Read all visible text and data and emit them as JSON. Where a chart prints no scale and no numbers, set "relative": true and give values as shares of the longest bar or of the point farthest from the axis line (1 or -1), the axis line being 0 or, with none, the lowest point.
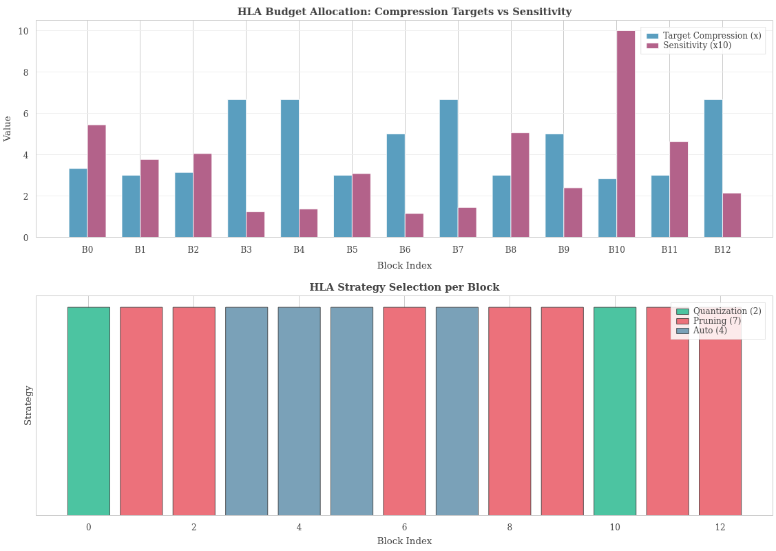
{
  "chart_data": [
    {
      "type": "bar",
      "title": "HLA Budget Allocation: Compression Targets vs Sensitivity",
      "xlabel": "Block Index",
      "ylabel": "Value",
      "categories": [
        "B0",
        "B1",
        "B2",
        "B3",
        "B4",
        "B5",
        "B6",
        "B7",
        "B8",
        "B9",
        "B10",
        "B11",
        "B12"
      ],
      "series": [
        {
          "name": "Target Compression (x)",
          "color": "#5a9ebf",
          "values": [
            3.33,
            3.0,
            3.14,
            6.67,
            6.67,
            3.0,
            5.0,
            6.67,
            3.0,
            5.0,
            2.83,
            3.0,
            6.67
          ]
        },
        {
          "name": "Sensitivity (x10)",
          "color": "#b3628a",
          "values": [
            5.44,
            3.77,
            4.05,
            1.23,
            1.37,
            3.08,
            1.15,
            1.44,
            5.06,
            2.39,
            10.0,
            4.63,
            2.14
          ]
        }
      ],
      "ylim": [
        0,
        10.5
      ],
      "yticks": [
        0,
        2,
        4,
        6,
        8,
        10
      ],
      "grid": true,
      "legend": "top right"
    },
    {
      "type": "bar",
      "title": "HLA Strategy Selection per Block",
      "xlabel": "Block Index",
      "ylabel": "Strategy",
      "relative": true,
      "x": [
        0,
        1,
        2,
        3,
        4,
        5,
        6,
        7,
        8,
        9,
        10,
        11,
        12
      ],
      "series": [
        {
          "name": "Quantization (2)",
          "color": "#4cc4a1",
          "values": [
            1,
            null,
            null,
            null,
            null,
            null,
            null,
            null,
            null,
            null,
            1,
            null,
            null
          ]
        },
        {
          "name": "Pruning (7)",
          "color": "#ec717b",
          "values": [
            null,
            1,
            1,
            null,
            null,
            null,
            1,
            null,
            1,
            1,
            null,
            1,
            1
          ]
        },
        {
          "name": "Auto (4)",
          "color": "#7aa1b8",
          "values": [
            null,
            null,
            null,
            1,
            1,
            1,
            null,
            1,
            null,
            null,
            null,
            null,
            null
          ]
        }
      ],
      "xlim": [
        -1,
        13
      ],
      "xticks": [
        0,
        2,
        4,
        6,
        8,
        10,
        12
      ],
      "tick_labels": "x",
      "grid": "x",
      "legend": "top right"
    }
  ]
}
